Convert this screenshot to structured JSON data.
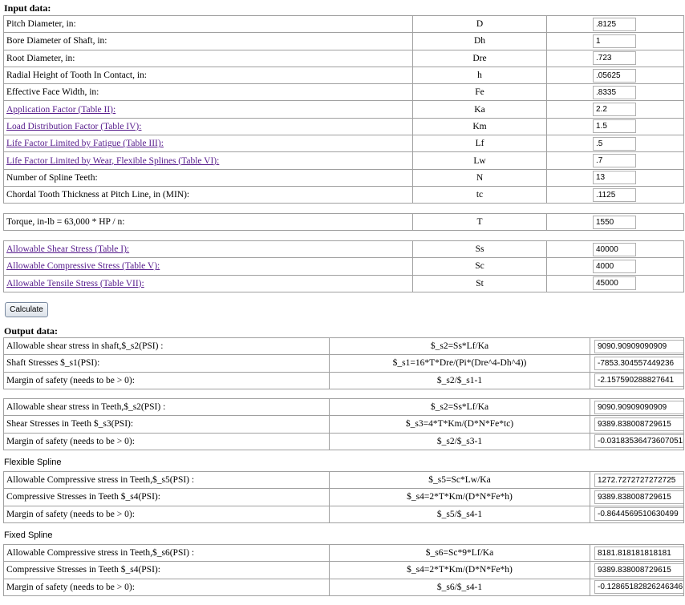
{
  "input": {
    "title": "Input data:",
    "rows": [
      {
        "label": "Pitch Diameter, in:",
        "symbol": "D",
        "value": ".8125"
      },
      {
        "label": "Bore Diameter of Shaft, in:",
        "symbol": "Dh",
        "value": "1"
      },
      {
        "label": "Root Diameter, in:",
        "symbol": "Dre",
        "value": ".723"
      },
      {
        "label": "Radial Height of Tooth In Contact, in:",
        "symbol": "h",
        "value": ".05625"
      },
      {
        "label": "Effective Face Width, in:",
        "symbol": "Fe",
        "value": ".8335"
      },
      {
        "label": "Application Factor (Table II):",
        "symbol": "Ka",
        "value": "2.2",
        "link": true
      },
      {
        "label": "Load Distribution Factor (Table IV):",
        "symbol": "Km",
        "value": "1.5",
        "link": true
      },
      {
        "label": "Life Factor Limited by Fatigue (Table III):",
        "symbol": "Lf",
        "value": ".5",
        "link": true
      },
      {
        "label": "Life Factor Limited by Wear, Flexible Splines (Table VI):",
        "symbol": "Lw",
        "value": ".7",
        "link": true
      },
      {
        "label": "Number of Spline Teeth:",
        "symbol": "N",
        "value": "13"
      },
      {
        "label": "Chordal Tooth Thickness at Pitch Line, in (MIN):",
        "symbol": "tc",
        "value": ".1125"
      }
    ]
  },
  "torque": {
    "rows": [
      {
        "label": "Torque, in-lb = 63,000 * HP / n:",
        "symbol": "T",
        "value": "1550"
      }
    ]
  },
  "stresses": {
    "rows": [
      {
        "label": "Allowable Shear Stress (Table I):",
        "symbol": "Ss",
        "value": "40000",
        "link": true
      },
      {
        "label": "Allowable Compressive Stress (Table V):",
        "symbol": "Sc",
        "value": "4000",
        "link": true
      },
      {
        "label": "Allowable Tensile Stress (Table VII):",
        "symbol": "St",
        "value": "45000",
        "link": true
      }
    ]
  },
  "button": "Calculate",
  "output": {
    "title": "Output data:",
    "groups": [
      {
        "rows": [
          {
            "label": "Allowable shear stress in shaft,$_s2(PSI) :",
            "formula": "$_s2=Ss*Lf/Ka",
            "value": "9090.90909090909"
          },
          {
            "label": "Shaft Stresses $_s1(PSI):",
            "formula": "$_s1=16*T*Dre/(Pi*(Dre^4-Dh^4))",
            "value": "-7853.304557449236"
          },
          {
            "label": "Margin of safety (needs to be > 0):",
            "formula": "$_s2/$_s1-1",
            "value": "-2.157590288827641"
          }
        ]
      },
      {
        "rows": [
          {
            "label": "Allowable shear stress in Teeth,$_s2(PSI) :",
            "formula": "$_s2=Ss*Lf/Ka",
            "value": "9090.90909090909"
          },
          {
            "label": "Shear Stresses in Teeth $_s3(PSI):",
            "formula": "$_s3=4*T*Km/(D*N*Fe*tc)",
            "value": "9389.838008729615"
          },
          {
            "label": "Margin of safety (needs to be > 0):",
            "formula": "$_s2/$_s3-1",
            "value": "-0.031835364736070515"
          }
        ]
      },
      {
        "heading": "Flexible Spline",
        "rows": [
          {
            "label": "Allowable Compressive stress in Teeth,$_s5(PSI) :",
            "formula": "$_s5=Sc*Lw/Ka",
            "value": "1272.7272727272725"
          },
          {
            "label": "Compressive Stresses in Teeth $_s4(PSI):",
            "formula": "$_s4=2*T*Km/(D*N*Fe*h)",
            "value": "9389.838008729615"
          },
          {
            "label": "Margin of safety (needs to be > 0):",
            "formula": "$_s5/$_s4-1",
            "value": "-0.8644569510630499"
          }
        ]
      },
      {
        "heading": "Fixed Spline",
        "rows": [
          {
            "label": "Allowable Compressive stress in Teeth,$_s6(PSI) :",
            "formula": "$_s6=Sc*9*Lf/Ka",
            "value": "8181.818181818181"
          },
          {
            "label": "Compressive Stresses in Teeth $_s4(PSI):",
            "formula": "$_s4=2*T*Km/(D*N*Fe*h)",
            "value": "9389.838008729615"
          },
          {
            "label": "Margin of safety (needs to be > 0):",
            "formula": "$_s6/$_s4-1",
            "value": "-0.12865182826246346"
          }
        ]
      }
    ]
  }
}
